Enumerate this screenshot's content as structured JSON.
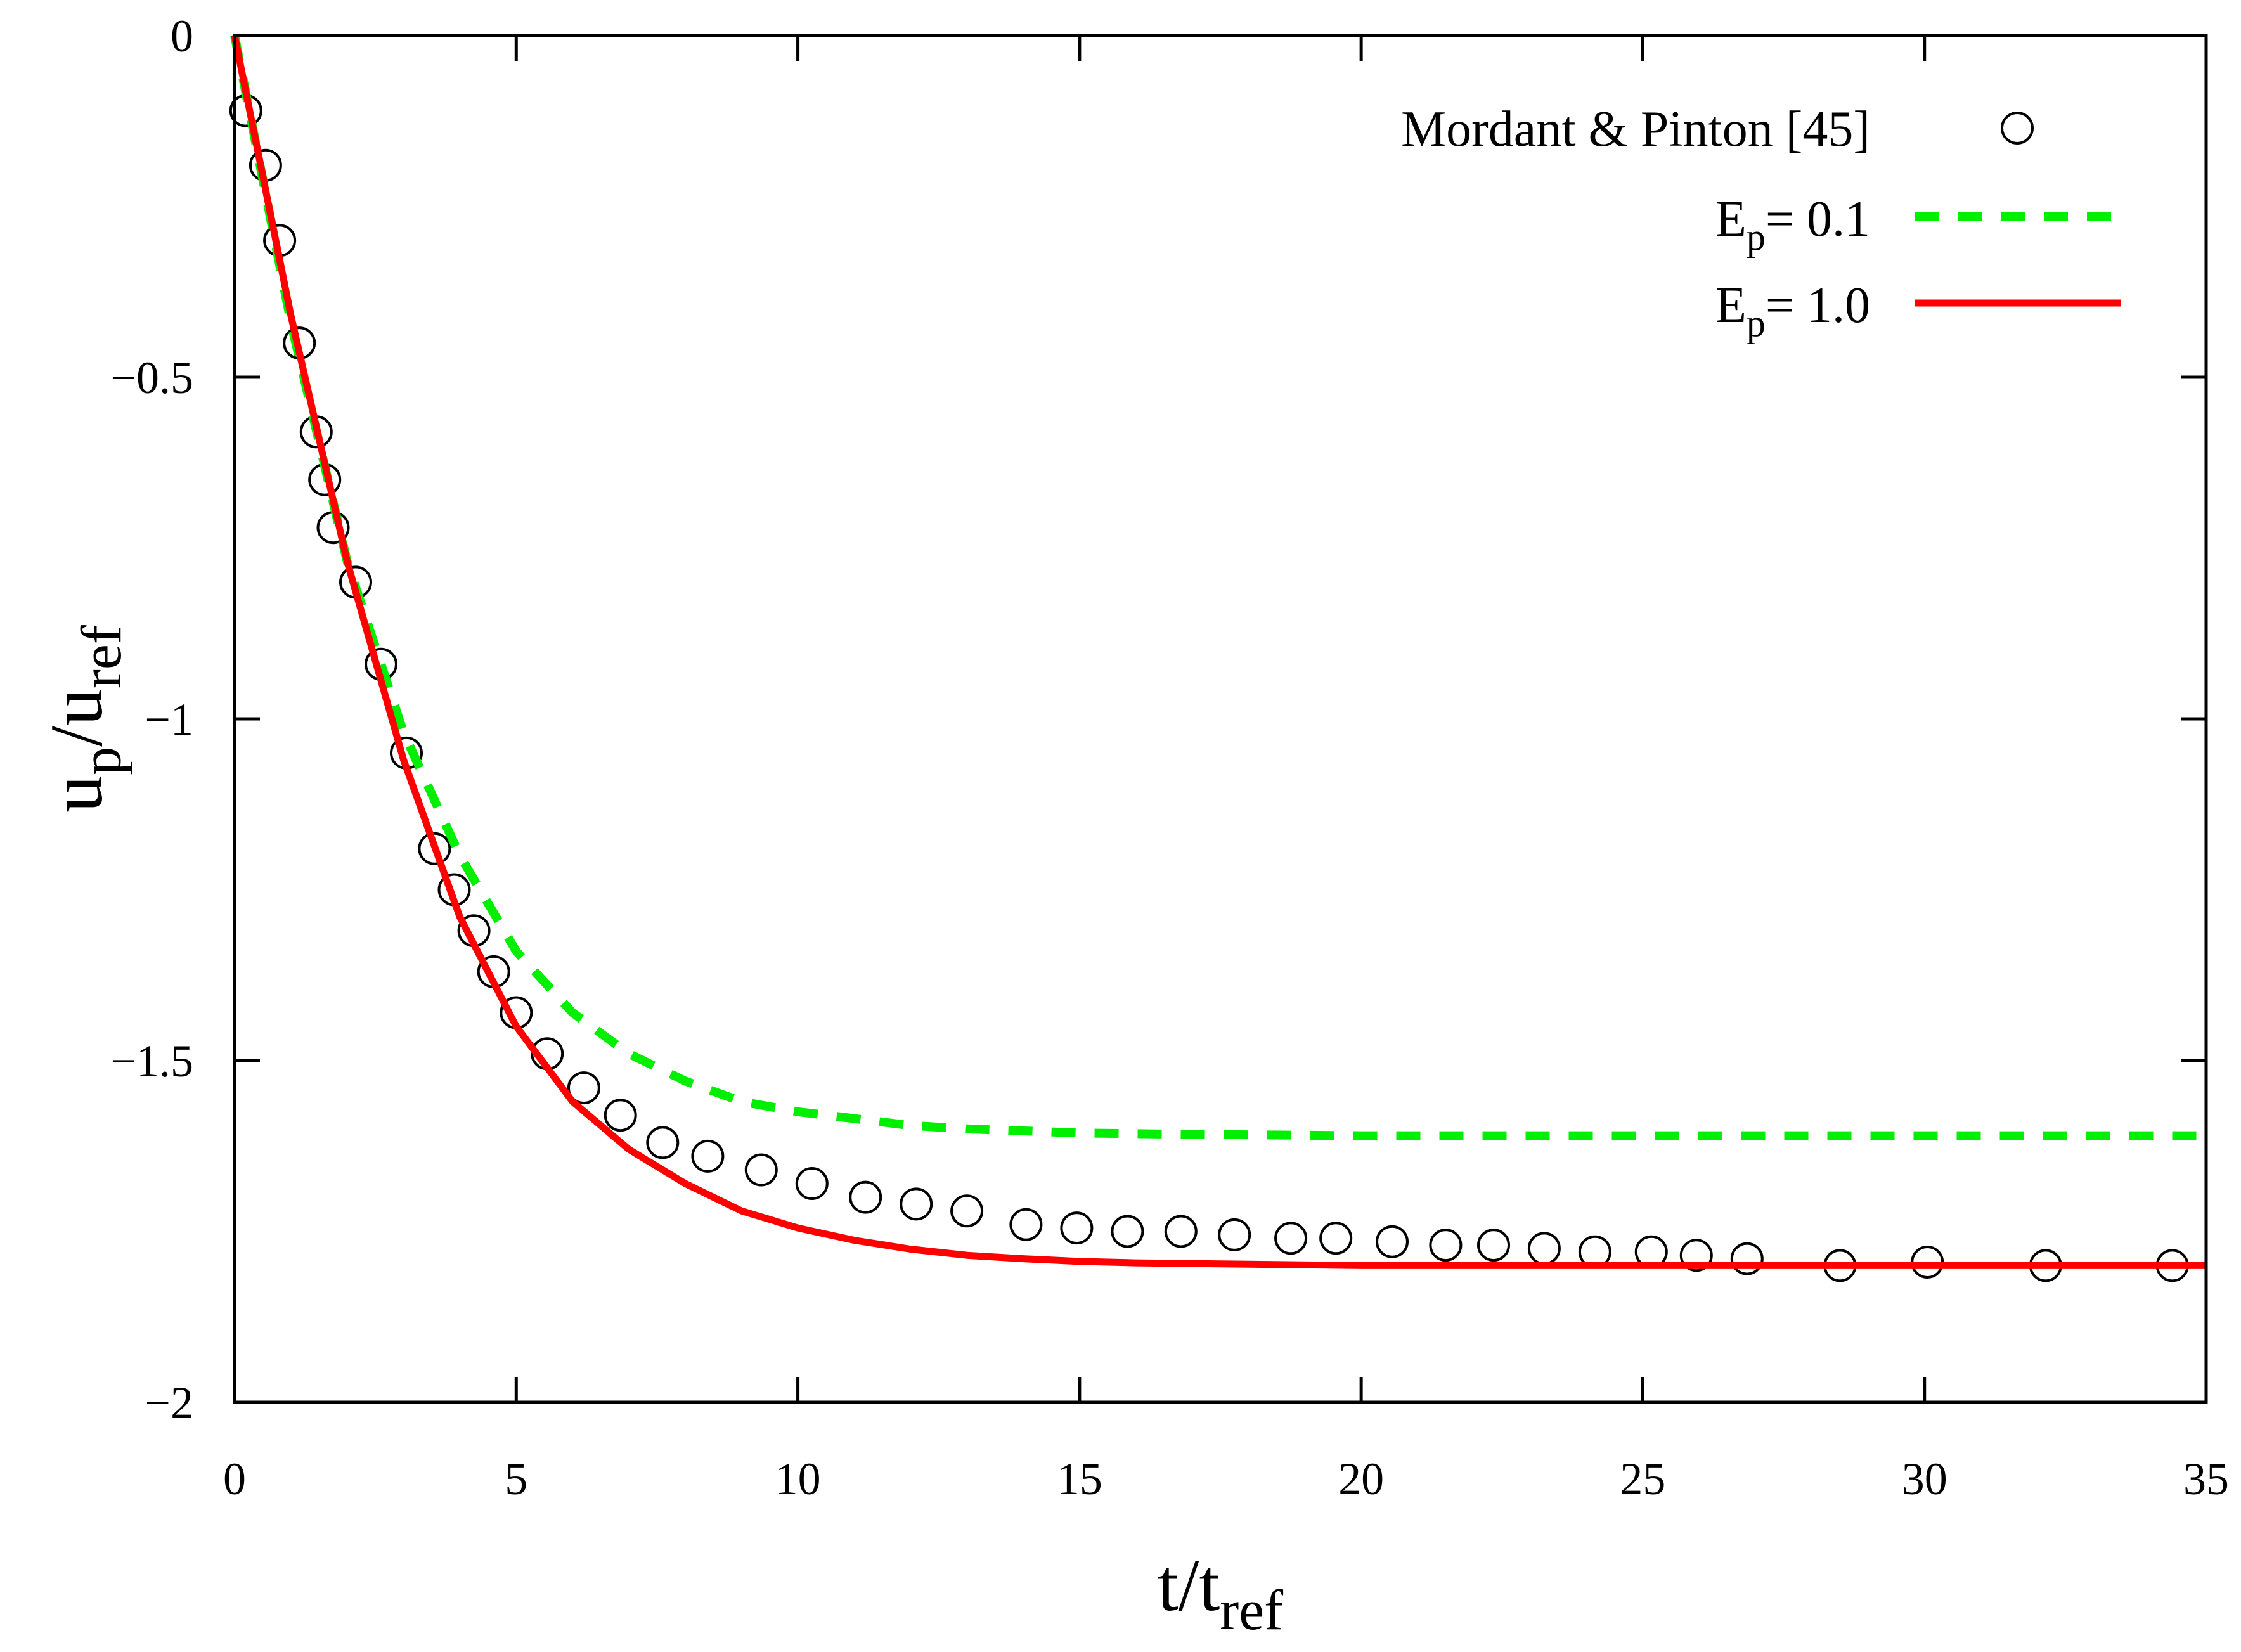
{
  "chart_data": {
    "type": "line",
    "title": "",
    "xlabel": {
      "main": "t/t",
      "sub": "ref"
    },
    "ylabel": {
      "main": "u",
      "sub1": "p",
      "mid": "/u",
      "sub2": "ref"
    },
    "xlim": [
      0,
      35
    ],
    "ylim": [
      -2,
      0
    ],
    "xticks": [
      0,
      5,
      10,
      15,
      20,
      25,
      30,
      35
    ],
    "yticks": [
      0,
      -0.5,
      -1,
      -1.5,
      -2
    ],
    "xtick_labels": [
      "0",
      "5",
      "10",
      "15",
      "20",
      "25",
      "30",
      "35"
    ],
    "ytick_labels": [
      "0",
      "−0.5",
      "−1",
      "−1.5",
      "−2"
    ],
    "grid": false,
    "legend_position": "top-right",
    "series": [
      {
        "name": "Mordant & Pinton [45]",
        "label_main": "Mordant & Pinton [45]",
        "style": "scatter",
        "marker": "open-circle",
        "color": "#000000",
        "x": [
          0.2,
          0.55,
          0.8,
          1.15,
          1.45,
          1.6,
          1.75,
          2.15,
          2.6,
          3.05,
          3.55,
          3.9,
          4.25,
          4.6,
          5.0,
          5.55,
          6.2,
          6.85,
          7.6,
          8.4,
          9.35,
          10.25,
          11.2,
          12.1,
          13.0,
          14.05,
          14.95,
          15.85,
          16.8,
          17.75,
          18.75,
          19.55,
          20.55,
          21.5,
          22.35,
          23.25,
          24.15,
          25.15,
          25.95,
          26.85,
          28.5,
          30.05,
          32.15,
          34.4
        ],
        "y": [
          -0.11,
          -0.19,
          -0.3,
          -0.45,
          -0.58,
          -0.65,
          -0.72,
          -0.8,
          -0.92,
          -1.05,
          -1.19,
          -1.25,
          -1.31,
          -1.37,
          -1.43,
          -1.49,
          -1.54,
          -1.58,
          -1.62,
          -1.64,
          -1.66,
          -1.68,
          -1.7,
          -1.71,
          -1.72,
          -1.74,
          -1.745,
          -1.75,
          -1.75,
          -1.755,
          -1.76,
          -1.76,
          -1.765,
          -1.77,
          -1.77,
          -1.775,
          -1.78,
          -1.78,
          -1.785,
          -1.79,
          -1.8,
          -1.795,
          -1.8,
          -1.8
        ]
      },
      {
        "name": "E_p = 0.1",
        "label_main": "E",
        "label_sub": "p",
        "label_rest": "= 0.1",
        "style": "dashed",
        "color": "#00ee00",
        "x": [
          0,
          1,
          2,
          3,
          4,
          5,
          6,
          7,
          8,
          9,
          10,
          11,
          12,
          13,
          14,
          15,
          17,
          20,
          25,
          30,
          35
        ],
        "y": [
          0,
          -0.42,
          -0.77,
          -1.02,
          -1.2,
          -1.34,
          -1.43,
          -1.49,
          -1.53,
          -1.56,
          -1.575,
          -1.585,
          -1.595,
          -1.6,
          -1.603,
          -1.606,
          -1.608,
          -1.61,
          -1.61,
          -1.61,
          -1.61
        ]
      },
      {
        "name": "E_p = 1.0",
        "label_main": "E",
        "label_sub": "p",
        "label_rest": "= 1.0",
        "style": "solid",
        "color": "#ff0000",
        "x": [
          0,
          1,
          2,
          3,
          4,
          5,
          6,
          7,
          8,
          9,
          10,
          11,
          12,
          13,
          14,
          15,
          16,
          18,
          20,
          25,
          30,
          35
        ],
        "y": [
          0,
          -0.41,
          -0.77,
          -1.06,
          -1.29,
          -1.45,
          -1.56,
          -1.63,
          -1.68,
          -1.72,
          -1.745,
          -1.763,
          -1.776,
          -1.785,
          -1.79,
          -1.794,
          -1.796,
          -1.798,
          -1.8,
          -1.8,
          -1.8,
          -1.8
        ]
      }
    ]
  }
}
